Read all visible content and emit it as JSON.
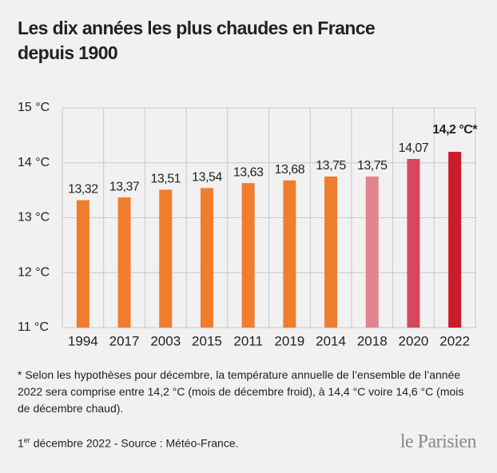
{
  "chart_data": {
    "type": "bar",
    "title": "Les dix années les plus chaudes en France depuis 1900",
    "categories": [
      "1994",
      "2017",
      "2003",
      "2015",
      "2011",
      "2019",
      "2014",
      "2018",
      "2020",
      "2022"
    ],
    "values": [
      13.32,
      13.37,
      13.51,
      13.54,
      13.63,
      13.68,
      13.75,
      13.75,
      14.07,
      14.2
    ],
    "value_labels": [
      "13,32",
      "13,37",
      "13,51",
      "13,54",
      "13,63",
      "13,68",
      "13,75",
      "13,75",
      "14,07",
      "14,2 °C*"
    ],
    "colors": [
      "#f07d2c",
      "#f07d2c",
      "#f07d2c",
      "#f07d2c",
      "#f07d2c",
      "#f07d2c",
      "#f07d2c",
      "#e0858e",
      "#d8475b",
      "#cc1b2b"
    ],
    "ylim": [
      11,
      15
    ],
    "yticks": [
      {
        "value": 11,
        "label": "11 °C"
      },
      {
        "value": 12,
        "label": "12 °C"
      },
      {
        "value": 13,
        "label": "13 °C"
      },
      {
        "value": 14,
        "label": "14 °C"
      },
      {
        "value": 15,
        "label": "15 °C"
      }
    ],
    "grid": true,
    "note": "* Selon les hypothèses pour décembre, la température annuelle de l’ensemble de l’année 2022 sera comprise entre 14,2 °C (mois de décembre froid), à 14,4 °C voire 14,6 °C (mois de décembre chaud).",
    "source": {
      "day": "1",
      "ordinal": "er",
      "text": "décembre 2022 - Source : Météo-France."
    },
    "logo": "le Parisien"
  }
}
